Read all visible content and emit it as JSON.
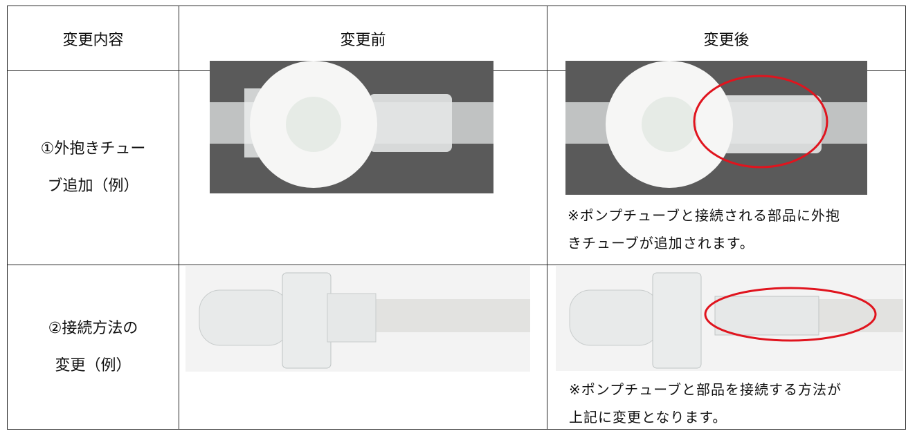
{
  "table": {
    "header": [
      "変更内容",
      "変更前",
      "変更後"
    ],
    "rows": [
      {
        "label": [
          "①外抱きチュー",
          "ブ追加（例）"
        ],
        "caption": [
          "※ポンプチューブと接続される部品に外抱",
          "きチューブが追加されます。"
        ]
      },
      {
        "label": [
          "②接続方法の",
          "変更（例）"
        ],
        "caption": [
          "※ポンプチューブと部品を接続する方法が",
          "上記に変更となります。"
        ]
      }
    ]
  }
}
